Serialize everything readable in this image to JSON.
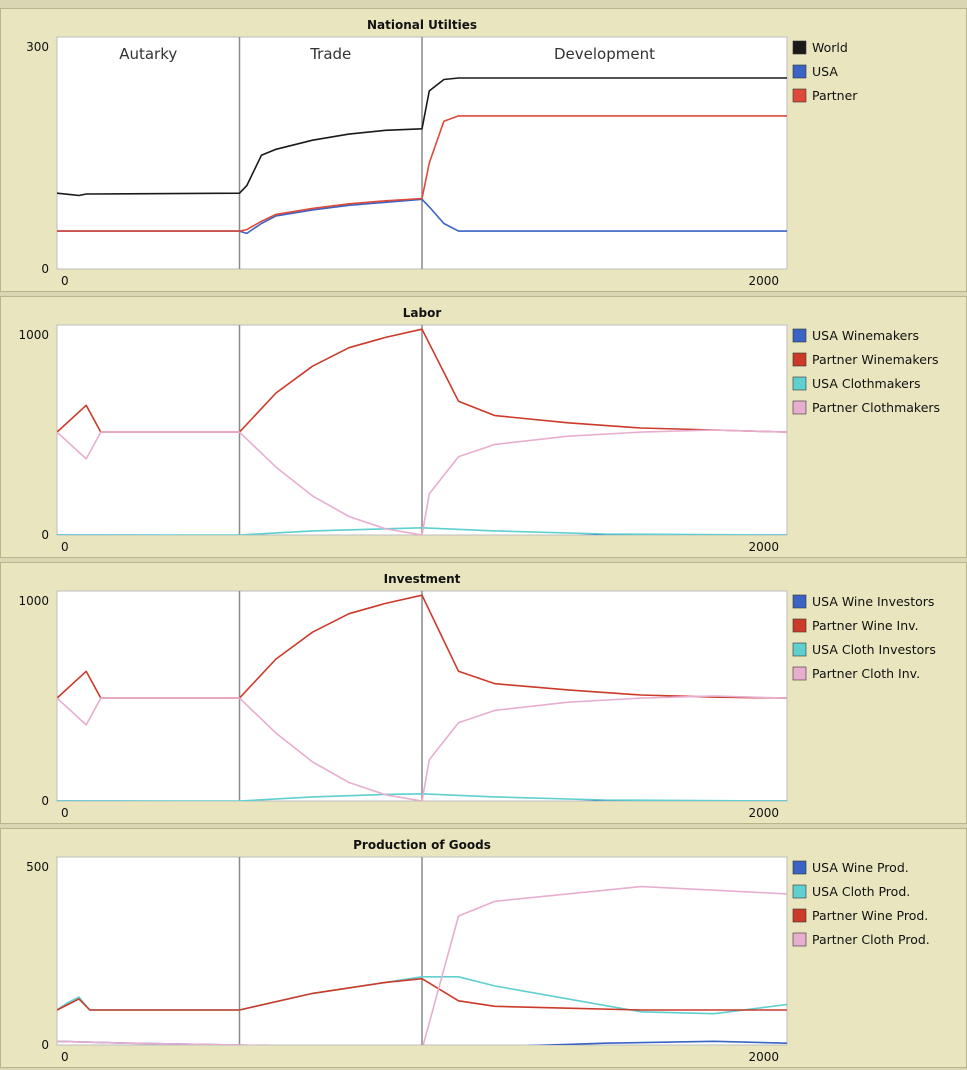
{
  "chart_data": [
    {
      "type": "line",
      "title": "National Utilties",
      "xlim": [
        0,
        2000
      ],
      "ylim": [
        0,
        300
      ],
      "x_tick_labels": [
        "0",
        "2000"
      ],
      "y_tick_labels": [
        "300",
        "0"
      ],
      "phase_boundaries": [
        500,
        1000
      ],
      "phase_labels": [
        "Autarky",
        "Trade",
        "Development"
      ],
      "grid": false,
      "legend": "right",
      "series": [
        {
          "name": "World",
          "color": "#1a1a1a",
          "x": [
            0,
            40,
            60,
            80,
            500,
            520,
            560,
            600,
            700,
            800,
            900,
            1000,
            1020,
            1060,
            1100,
            1200,
            1400,
            2000
          ],
          "y": [
            100,
            98,
            97,
            99,
            100,
            110,
            150,
            158,
            170,
            178,
            183,
            185,
            235,
            250,
            252,
            252,
            252,
            252
          ]
        },
        {
          "name": "USA",
          "color": "#3a63c4",
          "x": [
            0,
            500,
            520,
            560,
            600,
            700,
            800,
            900,
            1000,
            1020,
            1060,
            1100,
            1200,
            2000
          ],
          "y": [
            50,
            50,
            47,
            60,
            70,
            78,
            84,
            88,
            92,
            82,
            60,
            50,
            50,
            50
          ]
        },
        {
          "name": "Partner",
          "color": "#dd4a3a",
          "x": [
            0,
            500,
            520,
            560,
            600,
            700,
            800,
            900,
            1000,
            1020,
            1060,
            1100,
            1200,
            2000
          ],
          "y": [
            50,
            50,
            52,
            63,
            72,
            80,
            86,
            90,
            93,
            140,
            195,
            202,
            202,
            202
          ]
        }
      ]
    },
    {
      "type": "line",
      "title": "Labor",
      "xlim": [
        0,
        2000
      ],
      "ylim": [
        0,
        1000
      ],
      "x_tick_labels": [
        "0",
        "2000"
      ],
      "y_tick_labels": [
        "1000",
        "0"
      ],
      "phase_boundaries": [
        500,
        1000
      ],
      "grid": false,
      "legend": "right",
      "series": [
        {
          "name": "USA Winemakers",
          "color": "#3a63c4",
          "x": [
            0,
            500,
            700,
            900,
            1000,
            1200,
            1500,
            2000
          ],
          "y": [
            0,
            -2,
            -10,
            -25,
            -35,
            -15,
            0,
            0
          ]
        },
        {
          "name": "Partner Winemakers",
          "color": "#cc3a2a",
          "x": [
            0,
            80,
            120,
            500,
            600,
            700,
            800,
            900,
            1000,
            1100,
            1200,
            1400,
            1600,
            1800,
            2000
          ],
          "y": [
            500,
            630,
            500,
            500,
            690,
            820,
            910,
            960,
            1000,
            650,
            580,
            545,
            520,
            510,
            500
          ]
        },
        {
          "name": "USA Clothmakers",
          "color": "#5fcfcf",
          "x": [
            0,
            500,
            700,
            900,
            1000,
            1200,
            1500,
            2000
          ],
          "y": [
            0,
            0,
            20,
            30,
            35,
            20,
            5,
            0
          ]
        },
        {
          "name": "Partner Clothmakers",
          "color": "#e8aed0",
          "x": [
            0,
            80,
            120,
            500,
            600,
            700,
            800,
            900,
            1000,
            1020,
            1100,
            1200,
            1400,
            1600,
            1800,
            2000
          ],
          "y": [
            500,
            370,
            500,
            500,
            330,
            190,
            90,
            30,
            0,
            200,
            380,
            440,
            480,
            500,
            510,
            500
          ]
        }
      ]
    },
    {
      "type": "line",
      "title": "Investment",
      "xlim": [
        0,
        2000
      ],
      "ylim": [
        0,
        1000
      ],
      "x_tick_labels": [
        "0",
        "2000"
      ],
      "y_tick_labels": [
        "1000",
        "0"
      ],
      "phase_boundaries": [
        500,
        1000
      ],
      "grid": false,
      "legend": "right",
      "series": [
        {
          "name": "USA Wine Investors",
          "color": "#3a63c4",
          "x": [
            0,
            500,
            700,
            900,
            1000,
            1200,
            1500,
            2000
          ],
          "y": [
            0,
            -2,
            -12,
            -28,
            -35,
            -15,
            0,
            0
          ]
        },
        {
          "name": "Partner Wine Inv.",
          "color": "#cc3a2a",
          "x": [
            0,
            80,
            120,
            500,
            600,
            700,
            800,
            900,
            1000,
            1100,
            1200,
            1400,
            1600,
            1800,
            2000
          ],
          "y": [
            500,
            630,
            500,
            500,
            690,
            820,
            910,
            960,
            1000,
            630,
            570,
            540,
            515,
            505,
            500
          ]
        },
        {
          "name": "USA Cloth Investors",
          "color": "#5fcfcf",
          "x": [
            0,
            500,
            700,
            900,
            1000,
            1200,
            1500,
            2000
          ],
          "y": [
            0,
            0,
            20,
            32,
            35,
            20,
            5,
            0
          ]
        },
        {
          "name": "Partner Cloth Inv.",
          "color": "#e8aed0",
          "x": [
            0,
            80,
            120,
            500,
            600,
            700,
            800,
            900,
            1000,
            1020,
            1100,
            1200,
            1400,
            1600,
            1800,
            2000
          ],
          "y": [
            500,
            370,
            500,
            500,
            330,
            190,
            90,
            30,
            0,
            200,
            380,
            440,
            480,
            500,
            510,
            500
          ]
        }
      ]
    },
    {
      "type": "line",
      "title": "Production of Goods",
      "xlim": [
        0,
        2000
      ],
      "ylim": [
        0,
        500
      ],
      "x_tick_labels": [
        "0",
        "2000"
      ],
      "y_tick_labels": [
        "500",
        "0"
      ],
      "phase_boundaries": [
        500,
        1000
      ],
      "grid": false,
      "legend": "right",
      "series": [
        {
          "name": "USA Wine Prod.",
          "color": "#3a63c4",
          "x": [
            0,
            200,
            500,
            700,
            900,
            1000,
            1200,
            1500,
            1800,
            2000
          ],
          "y": [
            10,
            5,
            0,
            -5,
            -10,
            -12,
            -5,
            5,
            10,
            5
          ]
        },
        {
          "name": "USA Cloth Prod.",
          "color": "#5fcfcf",
          "x": [
            0,
            30,
            60,
            90,
            500,
            700,
            900,
            1000,
            1100,
            1200,
            1400,
            1600,
            1800,
            2000
          ],
          "y": [
            95,
            115,
            130,
            95,
            95,
            140,
            170,
            185,
            185,
            160,
            125,
            90,
            85,
            110
          ]
        },
        {
          "name": "Partner Wine Prod.",
          "color": "#cc3a2a",
          "x": [
            0,
            30,
            60,
            90,
            500,
            700,
            900,
            1000,
            1100,
            1200,
            1400,
            1600,
            1800,
            2000
          ],
          "y": [
            95,
            110,
            125,
            95,
            95,
            140,
            170,
            180,
            120,
            105,
            100,
            95,
            95,
            95
          ]
        },
        {
          "name": "Partner Cloth Prod.",
          "color": "#e8aed0",
          "x": [
            0,
            200,
            500,
            700,
            900,
            1000,
            1100,
            1200,
            1400,
            1600,
            1800,
            2000
          ],
          "y": [
            10,
            5,
            0,
            -5,
            -10,
            -12,
            350,
            390,
            410,
            430,
            420,
            410
          ]
        }
      ]
    }
  ]
}
